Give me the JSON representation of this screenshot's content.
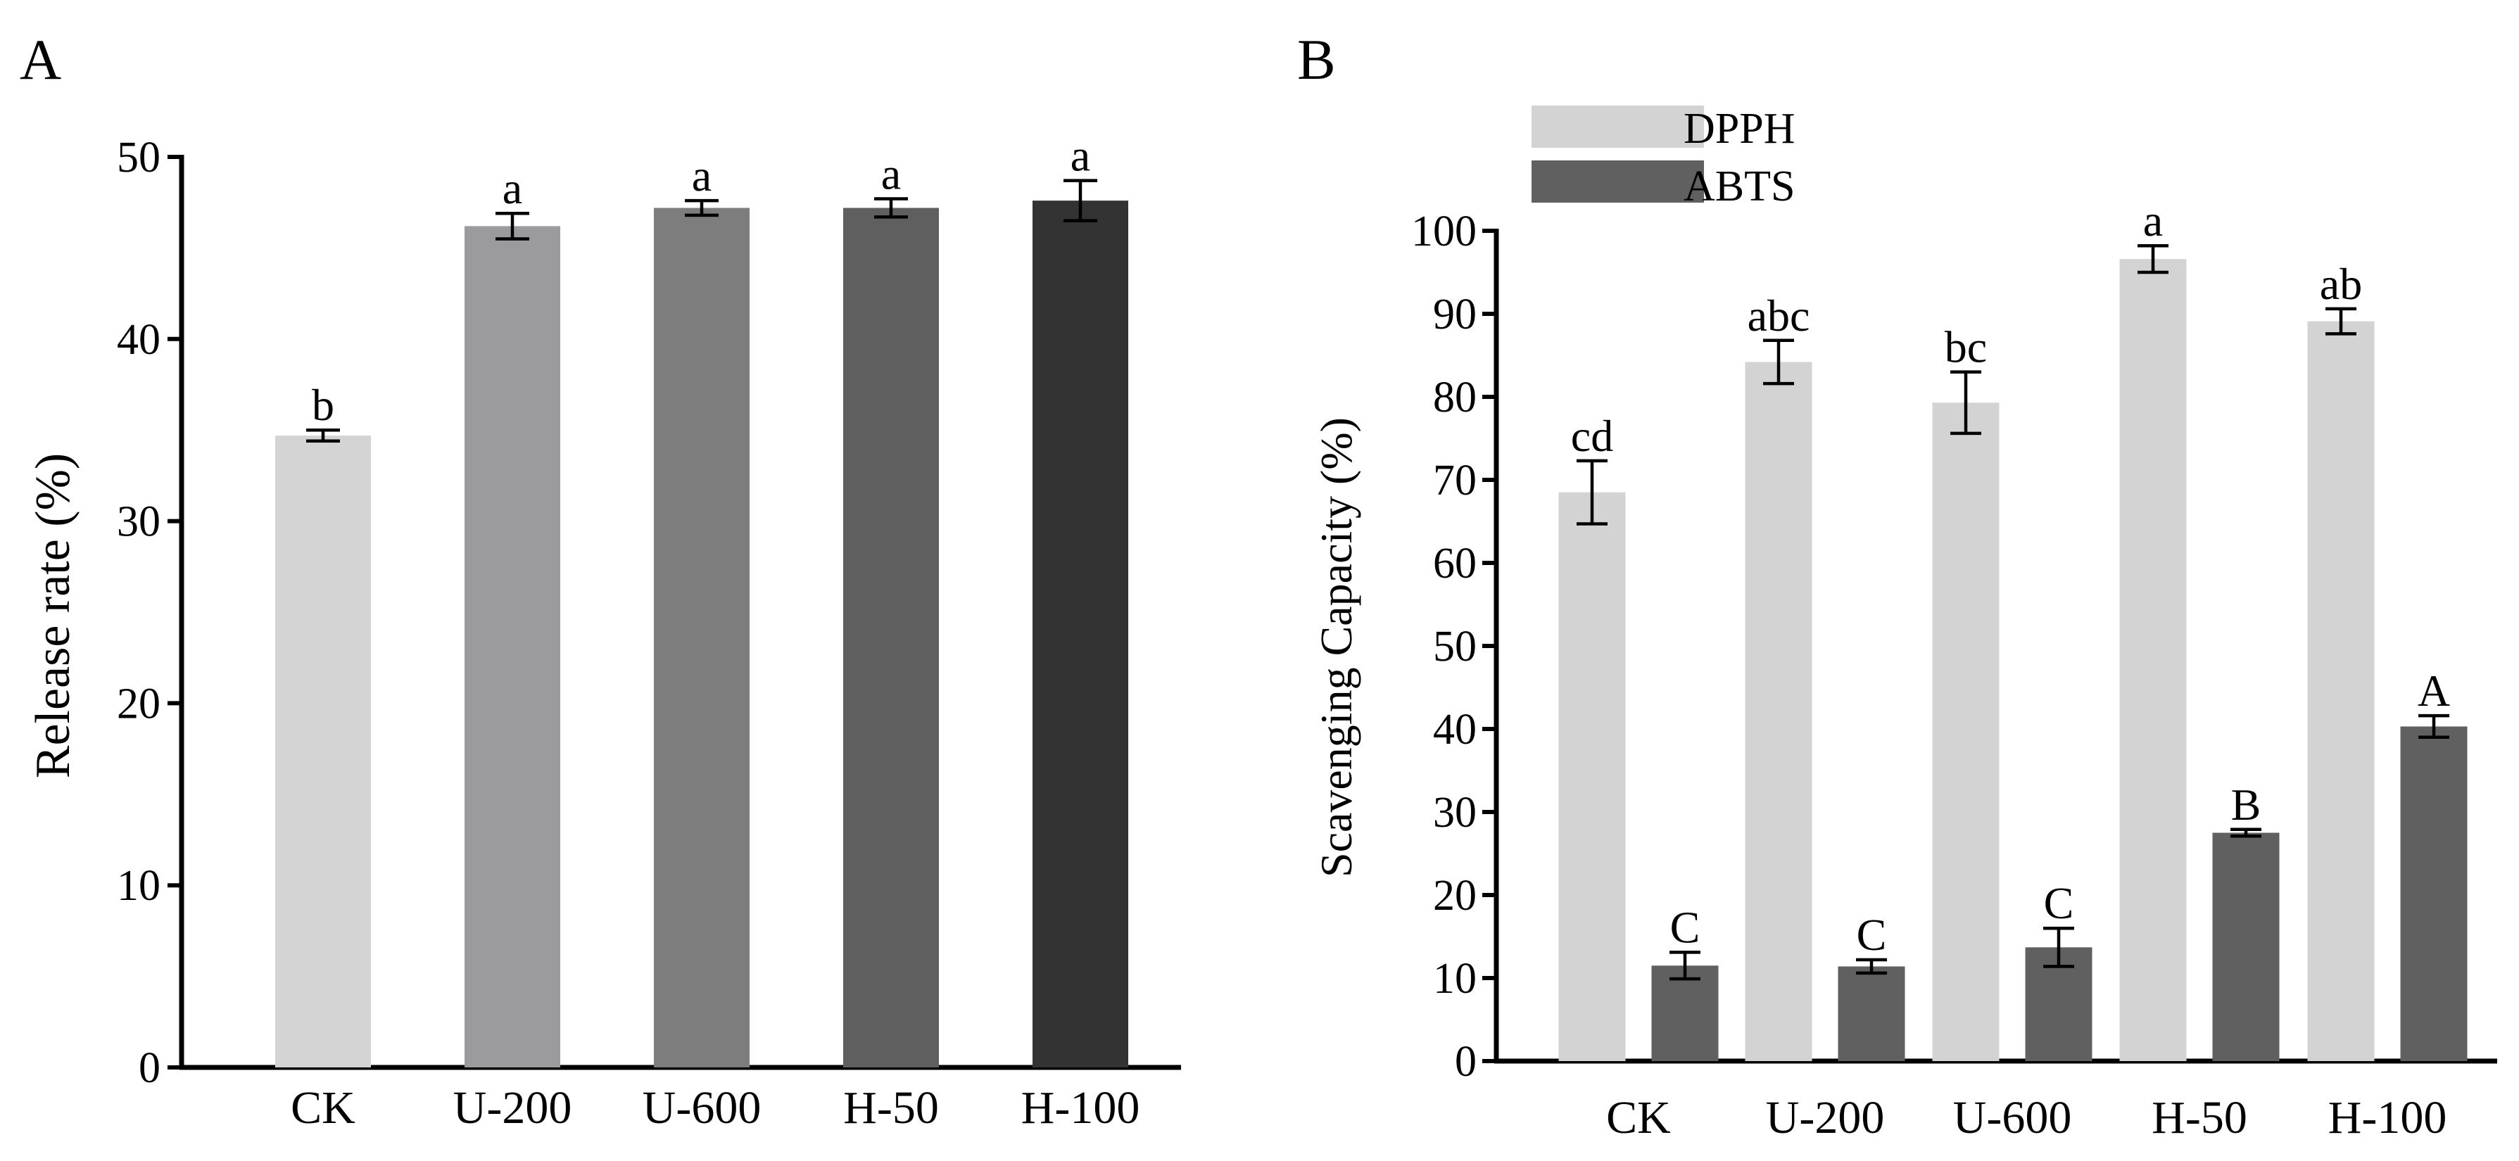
{
  "colors": {
    "A_bars": [
      "#d4d4d4",
      "#9b9b9d",
      "#7d7d7d",
      "#5f5f5f",
      "#333333"
    ],
    "dpph": "#d3d3d3",
    "abts": "#606060"
  },
  "chart_data": [
    {
      "panel": "A",
      "type": "bar",
      "title": "",
      "xlabel": "",
      "ylabel": "Release rate (%)",
      "ylim": [
        0,
        50
      ],
      "yticks": [
        0,
        10,
        20,
        30,
        40,
        50
      ],
      "categories": [
        "CK",
        "U-200",
        "U-600",
        "H-50",
        "H-100"
      ],
      "series": [
        {
          "name": "Release rate",
          "values": [
            34.7,
            46.2,
            47.2,
            47.2,
            47.6
          ],
          "errors": [
            0.3,
            0.7,
            0.4,
            0.5,
            1.1
          ],
          "labels": [
            "b",
            "a",
            "a",
            "a",
            "a"
          ]
        }
      ]
    },
    {
      "panel": "B",
      "type": "bar",
      "title": "",
      "xlabel": "",
      "ylabel": "Scavenging Capacity (%)",
      "ylim": [
        0,
        100
      ],
      "yticks": [
        0,
        10,
        20,
        30,
        40,
        50,
        60,
        70,
        80,
        90,
        100
      ],
      "legend_position": "top-left",
      "categories": [
        "CK",
        "U-200",
        "U-600",
        "H-50",
        "H-100"
      ],
      "series": [
        {
          "name": "DPPH",
          "values": [
            68.5,
            84.2,
            79.3,
            96.6,
            89.1
          ],
          "errors": [
            3.8,
            2.6,
            3.7,
            1.6,
            1.5
          ],
          "labels": [
            "cd",
            "abc",
            "bc",
            "a",
            "ab"
          ]
        },
        {
          "name": "ABTS",
          "values": [
            11.5,
            11.4,
            13.7,
            27.5,
            40.3
          ],
          "errors": [
            1.6,
            0.8,
            2.3,
            0.4,
            1.3
          ],
          "labels": [
            "C",
            "C",
            "C",
            "B",
            "A"
          ]
        }
      ]
    }
  ]
}
